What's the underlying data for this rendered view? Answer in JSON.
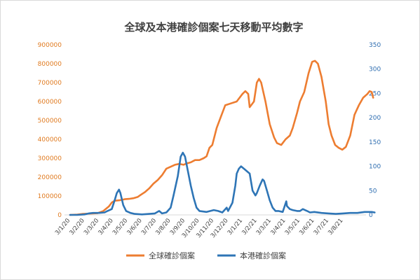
{
  "chart_data": {
    "type": "line",
    "title": "全球及本港確診個案七天移動平均數字",
    "x_tick_labels": [
      "3/1/20",
      "3/2/20",
      "3/3/20",
      "3/4/20",
      "3/5/20",
      "3/6/20",
      "3/7/20",
      "3/8/20",
      "3/9/20",
      "3/10/20",
      "3/11/20",
      "3/12/20",
      "3/1/21",
      "3/2/21",
      "3/3/21",
      "3/4/21",
      "3/5/21",
      "3/6/21",
      "3/7/21",
      "3/8/21"
    ],
    "y_left": {
      "min": 0,
      "max": 900000,
      "ticks": [
        "0",
        "100000",
        "200000",
        "300000",
        "400000",
        "500000",
        "600000",
        "700000",
        "800000",
        "900000"
      ]
    },
    "y_right": {
      "min": 0,
      "max": 350,
      "ticks": [
        "0",
        "50",
        "100",
        "150",
        "200",
        "250",
        "300",
        "350"
      ]
    },
    "grid": false,
    "legend_position": "bottom",
    "series": [
      {
        "name": "全球確診個案",
        "axis": "left",
        "color": "#ed7d31",
        "points": [
          [
            0,
            0
          ],
          [
            0.5,
            2000
          ],
          [
            0.9,
            5000
          ],
          [
            1.4,
            7000
          ],
          [
            1.9,
            9000
          ],
          [
            2.3,
            20000
          ],
          [
            2.7,
            45000
          ],
          [
            2.9,
            65000
          ],
          [
            3.1,
            75000
          ],
          [
            3.5,
            78000
          ],
          [
            3.8,
            83000
          ],
          [
            4.1,
            85000
          ],
          [
            4.4,
            88000
          ],
          [
            4.7,
            95000
          ],
          [
            4.9,
            105000
          ],
          [
            5.2,
            120000
          ],
          [
            5.5,
            140000
          ],
          [
            5.8,
            165000
          ],
          [
            6.1,
            185000
          ],
          [
            6.4,
            210000
          ],
          [
            6.7,
            245000
          ],
          [
            7.0,
            255000
          ],
          [
            7.3,
            265000
          ],
          [
            7.6,
            270000
          ],
          [
            7.9,
            265000
          ],
          [
            8.1,
            272000
          ],
          [
            8.4,
            278000
          ],
          [
            8.7,
            290000
          ],
          [
            9.0,
            290000
          ],
          [
            9.3,
            300000
          ],
          [
            9.5,
            310000
          ],
          [
            9.7,
            355000
          ],
          [
            9.9,
            370000
          ],
          [
            10.2,
            460000
          ],
          [
            10.5,
            520000
          ],
          [
            10.8,
            580000
          ],
          [
            11.2,
            590000
          ],
          [
            11.6,
            600000
          ],
          [
            12.0,
            640000
          ],
          [
            12.2,
            655000
          ],
          [
            12.4,
            640000
          ],
          [
            12.5,
            570000
          ],
          [
            12.8,
            600000
          ],
          [
            13.0,
            700000
          ],
          [
            13.15,
            720000
          ],
          [
            13.3,
            700000
          ],
          [
            13.6,
            600000
          ],
          [
            13.9,
            480000
          ],
          [
            14.2,
            410000
          ],
          [
            14.4,
            380000
          ],
          [
            14.7,
            370000
          ],
          [
            15.0,
            400000
          ],
          [
            15.3,
            420000
          ],
          [
            15.5,
            460000
          ],
          [
            15.8,
            540000
          ],
          [
            16.0,
            600000
          ],
          [
            16.3,
            650000
          ],
          [
            16.6,
            750000
          ],
          [
            16.85,
            810000
          ],
          [
            17.05,
            815000
          ],
          [
            17.25,
            800000
          ],
          [
            17.5,
            730000
          ],
          [
            17.8,
            600000
          ],
          [
            18.0,
            480000
          ],
          [
            18.2,
            420000
          ],
          [
            18.45,
            370000
          ],
          [
            18.7,
            355000
          ],
          [
            18.95,
            345000
          ],
          [
            19.2,
            360000
          ],
          [
            19.5,
            420000
          ],
          [
            19.8,
            530000
          ],
          [
            20.1,
            580000
          ],
          [
            20.4,
            620000
          ],
          [
            20.7,
            640000
          ],
          [
            20.85,
            655000
          ],
          [
            21.0,
            650000
          ],
          [
            21.1,
            620000
          ]
        ]
      },
      {
        "name": "本港確診個案",
        "axis": "right",
        "color": "#2e75b6",
        "points": [
          [
            0,
            0
          ],
          [
            0.5,
            0
          ],
          [
            1.0,
            1
          ],
          [
            1.3,
            3
          ],
          [
            1.6,
            4
          ],
          [
            2.0,
            4
          ],
          [
            2.4,
            5
          ],
          [
            2.6,
            8
          ],
          [
            2.9,
            12
          ],
          [
            3.1,
            30
          ],
          [
            3.25,
            45
          ],
          [
            3.4,
            52
          ],
          [
            3.5,
            45
          ],
          [
            3.7,
            20
          ],
          [
            3.9,
            8
          ],
          [
            4.2,
            4
          ],
          [
            4.5,
            2
          ],
          [
            5.0,
            1
          ],
          [
            5.5,
            2
          ],
          [
            5.9,
            3
          ],
          [
            6.2,
            8
          ],
          [
            6.4,
            3
          ],
          [
            6.7,
            5
          ],
          [
            7.0,
            15
          ],
          [
            7.2,
            40
          ],
          [
            7.5,
            80
          ],
          [
            7.7,
            120
          ],
          [
            7.85,
            128
          ],
          [
            8.0,
            120
          ],
          [
            8.2,
            90
          ],
          [
            8.4,
            60
          ],
          [
            8.6,
            35
          ],
          [
            8.8,
            15
          ],
          [
            9.0,
            8
          ],
          [
            9.5,
            6
          ],
          [
            10.0,
            10
          ],
          [
            10.3,
            8
          ],
          [
            10.6,
            5
          ],
          [
            10.9,
            15
          ],
          [
            11.0,
            8
          ],
          [
            11.3,
            25
          ],
          [
            11.5,
            60
          ],
          [
            11.6,
            85
          ],
          [
            11.75,
            95
          ],
          [
            11.9,
            100
          ],
          [
            12.1,
            95
          ],
          [
            12.3,
            90
          ],
          [
            12.5,
            85
          ],
          [
            12.7,
            50
          ],
          [
            12.9,
            40
          ],
          [
            13.0,
            45
          ],
          [
            13.2,
            60
          ],
          [
            13.4,
            73
          ],
          [
            13.5,
            70
          ],
          [
            13.7,
            50
          ],
          [
            13.9,
            30
          ],
          [
            14.1,
            15
          ],
          [
            14.3,
            8
          ],
          [
            14.5,
            8
          ],
          [
            14.8,
            6
          ],
          [
            15.05,
            28
          ],
          [
            15.1,
            18
          ],
          [
            15.3,
            12
          ],
          [
            15.5,
            10
          ],
          [
            15.8,
            8
          ],
          [
            16.0,
            8
          ],
          [
            16.2,
            12
          ],
          [
            16.5,
            8
          ],
          [
            16.7,
            5
          ],
          [
            17.0,
            6
          ],
          [
            17.5,
            4
          ],
          [
            18.0,
            3
          ],
          [
            18.5,
            2
          ],
          [
            19.0,
            3
          ],
          [
            19.5,
            4
          ],
          [
            20.0,
            4
          ],
          [
            20.5,
            6
          ],
          [
            21.0,
            6
          ],
          [
            21.2,
            5
          ]
        ]
      }
    ]
  }
}
